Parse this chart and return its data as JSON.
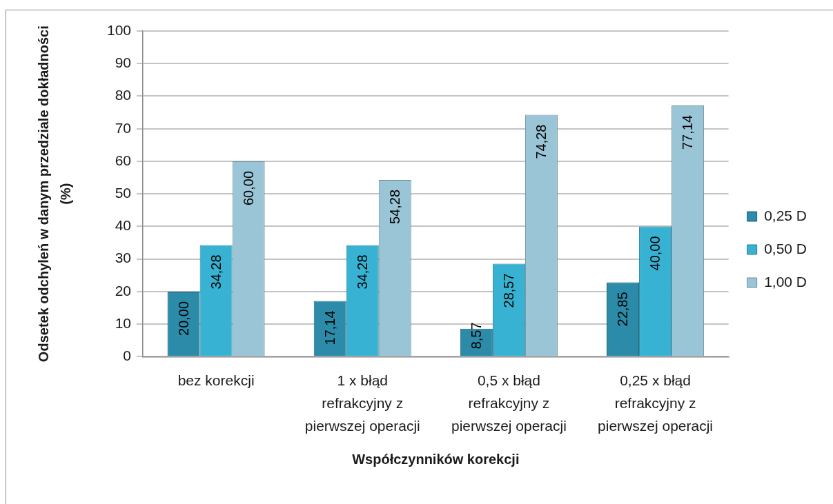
{
  "chart_data": {
    "type": "bar",
    "xlabel": "Współczynników korekcji",
    "ylabel": "Odsetek odchyleń w danym przedziale dokładności (%)",
    "categories": [
      "bez korekcji",
      "1 x błąd refrakcyjny z pierwszej operacji",
      "0,5 x błąd refrakcyjny z pierwszej operacji",
      "0,25 x błąd refrakcyjny z pierwszej operacji"
    ],
    "series": [
      {
        "name": "0,25 D",
        "color": "#2b8ba8",
        "values": [
          20.0,
          17.14,
          8.57,
          22.85
        ],
        "value_labels": [
          "20,00",
          "17,14",
          "8,57",
          "22,85"
        ]
      },
      {
        "name": "0,50 D",
        "color": "#38b2d2",
        "values": [
          34.28,
          34.28,
          28.57,
          40.0
        ],
        "value_labels": [
          "34,28",
          "34,28",
          "28,57",
          "40,00"
        ]
      },
      {
        "name": "1,00 D",
        "color": "#9ac5d7",
        "values": [
          60.0,
          54.28,
          74.28,
          77.14
        ],
        "value_labels": [
          "60,00",
          "54,28",
          "74,28",
          "77,14"
        ]
      }
    ],
    "ylim": [
      0,
      100
    ],
    "yticks": [
      0,
      10,
      20,
      30,
      40,
      50,
      60,
      70,
      80,
      90,
      100
    ],
    "grid": "y",
    "legend": "right"
  }
}
